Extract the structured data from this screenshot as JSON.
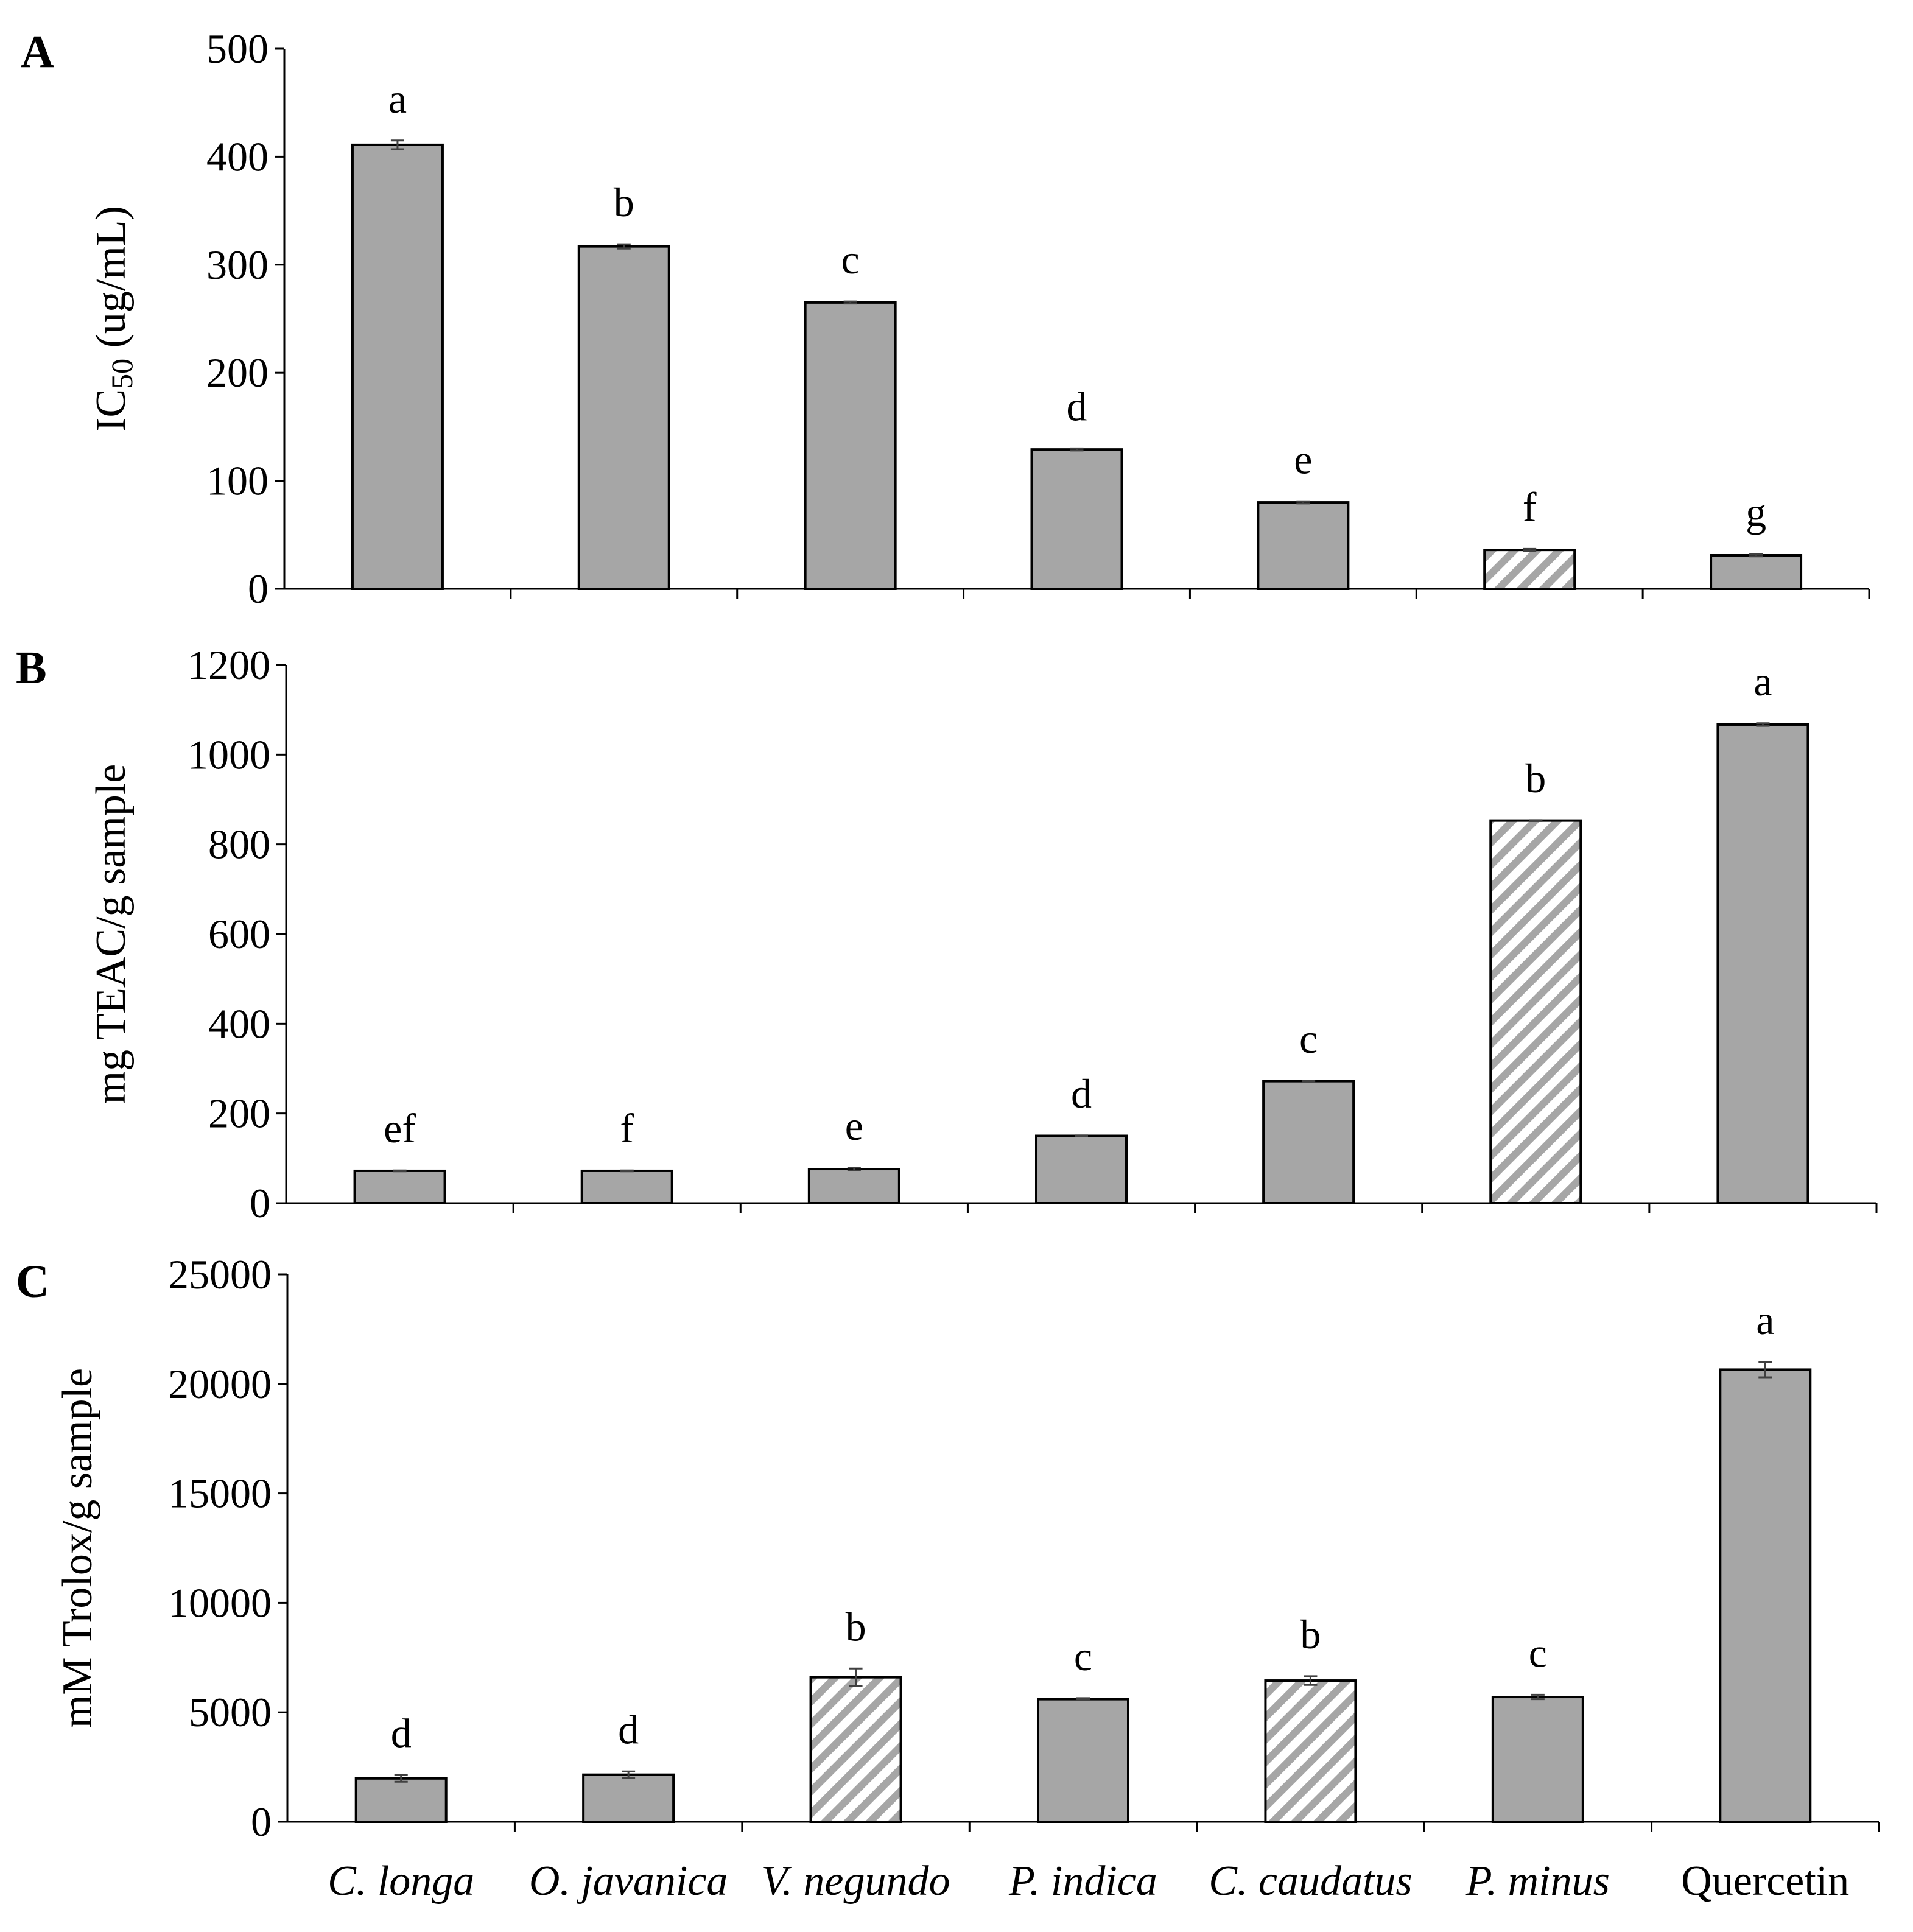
{
  "categories": [
    "C. longa",
    "O. javanica",
    "V. negundo",
    "P. indica",
    "C. caudatus",
    "P. minus",
    "Quercetin"
  ],
  "category_italic": [
    true,
    true,
    true,
    true,
    true,
    true,
    false
  ],
  "colors": {
    "bar_fill": "#a6a6a6",
    "bar_stroke": "#000000",
    "hatch_stripe": "#a6a6a6",
    "hatch_bg": "#ffffff",
    "error_bar": "#404040",
    "axis": "#000000"
  },
  "chart_data": [
    {
      "type": "bar",
      "panel": "A",
      "title": "",
      "xlabel": "",
      "ylabel_main": "IC",
      "ylabel_sub": "50",
      "ylabel_rest": " (ug/mL)",
      "ylim": [
        0,
        500
      ],
      "yticks": [
        0,
        100,
        200,
        300,
        400,
        500
      ],
      "tick_labels": [
        "0",
        "100",
        "200",
        "300",
        "400",
        "500"
      ],
      "values": [
        411,
        317,
        265,
        129,
        80,
        36,
        31
      ],
      "errors": [
        4,
        2,
        1,
        1,
        1,
        1,
        1
      ],
      "letters": [
        "a",
        "b",
        "c",
        "d",
        "e",
        "f",
        "g"
      ],
      "hatched": [
        false,
        false,
        false,
        false,
        false,
        true,
        false
      ]
    },
    {
      "type": "bar",
      "panel": "B",
      "title": "",
      "xlabel": "",
      "ylabel": "mg TEAC/g sample",
      "ylim": [
        0,
        1200
      ],
      "yticks": [
        0,
        200,
        400,
        600,
        800,
        1000,
        1200
      ],
      "tick_labels": [
        "0",
        "200",
        "400",
        "600",
        "800",
        "1000",
        "1200"
      ],
      "values": [
        72,
        72,
        76,
        150,
        272,
        853,
        1067
      ],
      "errors": [
        1,
        1,
        3,
        1,
        1,
        1,
        3
      ],
      "letters": [
        "ef",
        "f",
        "e",
        "d",
        "c",
        "b",
        "a"
      ],
      "hatched": [
        false,
        false,
        false,
        false,
        false,
        true,
        false
      ]
    },
    {
      "type": "bar",
      "panel": "C",
      "title": "",
      "xlabel": "",
      "ylabel": "mM Trolox/g sample",
      "ylim": [
        0,
        25000
      ],
      "yticks": [
        0,
        5000,
        10000,
        15000,
        20000,
        25000
      ],
      "tick_labels": [
        "0",
        "5000",
        "10000",
        "15000",
        "20000",
        "25000"
      ],
      "values": [
        1980,
        2150,
        6600,
        5600,
        6450,
        5700,
        20650
      ],
      "errors": [
        150,
        150,
        400,
        50,
        200,
        100,
        350
      ],
      "letters": [
        "d",
        "d",
        "b",
        "c",
        "b",
        "c",
        "a"
      ],
      "hatched": [
        false,
        false,
        true,
        false,
        true,
        false,
        false
      ]
    }
  ]
}
